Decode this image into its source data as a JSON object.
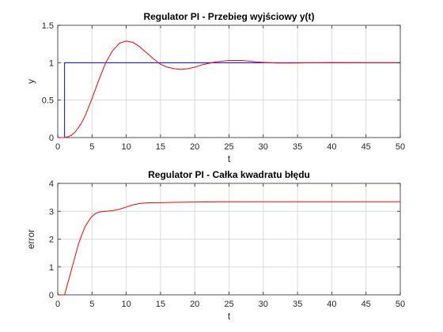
{
  "chart_data": [
    {
      "type": "line",
      "title": "Regulator PI - Przebieg wyjściowy y(t)",
      "xlabel": "t",
      "ylabel": "y",
      "xlim": [
        0,
        50
      ],
      "ylim": [
        0,
        1.5
      ],
      "xticks": [
        0,
        5,
        10,
        15,
        20,
        25,
        30,
        35,
        40,
        45,
        50
      ],
      "yticks": [
        0,
        0.5,
        1,
        1.5
      ],
      "xtick_labels": [
        "0",
        "5",
        "10",
        "15",
        "20",
        "25",
        "30",
        "35",
        "40",
        "45",
        "50"
      ],
      "ytick_labels": [
        "0",
        "0.5",
        "1",
        "1.5"
      ],
      "grid": true,
      "series": [
        {
          "color": "#0000ff",
          "x": [
            0,
            1,
            1,
            50
          ],
          "y": [
            0,
            0,
            1,
            1
          ]
        },
        {
          "color": "#ff0000",
          "x": [
            0,
            1,
            1.5,
            2,
            2.5,
            3,
            3.5,
            4,
            5,
            6,
            7,
            8,
            9,
            10,
            11,
            12,
            13,
            14,
            15,
            16,
            17,
            18,
            19,
            20,
            21,
            22,
            23,
            24,
            25,
            26,
            27,
            28,
            29,
            30,
            32,
            34,
            36,
            38,
            40,
            45,
            50
          ],
          "y": [
            0,
            0,
            0.01,
            0.03,
            0.07,
            0.13,
            0.2,
            0.29,
            0.52,
            0.77,
            1.0,
            1.16,
            1.26,
            1.29,
            1.27,
            1.21,
            1.13,
            1.05,
            0.98,
            0.94,
            0.92,
            0.91,
            0.92,
            0.94,
            0.97,
            0.99,
            1.01,
            1.02,
            1.03,
            1.03,
            1.03,
            1.02,
            1.01,
            1.005,
            0.995,
            0.995,
            0.998,
            1.0,
            1.002,
            1.0,
            1.0
          ]
        }
      ]
    },
    {
      "type": "line",
      "title": "Regulator PI - Całka kwadratu błędu",
      "xlabel": "t",
      "ylabel": "error",
      "xlim": [
        0,
        50
      ],
      "ylim": [
        0,
        4
      ],
      "xticks": [
        0,
        5,
        10,
        15,
        20,
        25,
        30,
        35,
        40,
        45,
        50
      ],
      "yticks": [
        0,
        1,
        2,
        3,
        4
      ],
      "xtick_labels": [
        "0",
        "5",
        "10",
        "15",
        "20",
        "25",
        "30",
        "35",
        "40",
        "45",
        "50"
      ],
      "ytick_labels": [
        "0",
        "1",
        "2",
        "3",
        "4"
      ],
      "grid": true,
      "series": [
        {
          "color": "#ff0000",
          "x": [
            0,
            1,
            1.5,
            2,
            2.5,
            3,
            3.5,
            4,
            4.5,
            5,
            5.5,
            6,
            7,
            8,
            9,
            10,
            11,
            12,
            13,
            14,
            15,
            17,
            20,
            25,
            30,
            40,
            50
          ],
          "y": [
            0,
            0,
            0.45,
            0.9,
            1.35,
            1.8,
            2.15,
            2.45,
            2.65,
            2.82,
            2.92,
            2.97,
            3.0,
            3.02,
            3.07,
            3.15,
            3.23,
            3.28,
            3.3,
            3.31,
            3.31,
            3.32,
            3.33,
            3.34,
            3.34,
            3.34,
            3.34
          ]
        }
      ]
    }
  ]
}
